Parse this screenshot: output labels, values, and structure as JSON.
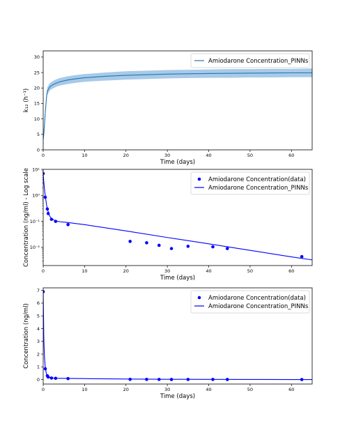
{
  "chart_data": [
    {
      "type": "area",
      "xlabel": "Time (days)",
      "ylabel": "k₁₂ (h⁻¹)",
      "xlim": [
        0,
        65
      ],
      "ylim": [
        0,
        32
      ],
      "xticks": [
        0,
        10,
        20,
        30,
        40,
        50,
        60
      ],
      "yticks": [
        0,
        5,
        10,
        15,
        20,
        25,
        30
      ],
      "legend_position": "upper-right",
      "series": [
        {
          "name": "Amiodarone Concentration_PINNs",
          "color": "#1f77b4",
          "band_color": "#9ec4e6",
          "x": [
            0,
            0.2,
            0.5,
            0.8,
            1,
            1.5,
            2,
            3,
            4,
            6,
            8,
            10,
            15,
            20,
            25,
            30,
            35,
            40,
            45,
            50,
            55,
            60,
            65
          ],
          "y": [
            3.5,
            6,
            12,
            17,
            19,
            20.2,
            20.8,
            21.5,
            22,
            22.6,
            23,
            23.3,
            23.8,
            24.1,
            24.3,
            24.5,
            24.6,
            24.7,
            24.75,
            24.8,
            24.85,
            24.9,
            24.9
          ],
          "lower": [
            2,
            4.5,
            10.5,
            15.8,
            17.8,
            19,
            19.6,
            20.3,
            20.8,
            21.3,
            21.7,
            22,
            22.4,
            22.7,
            22.9,
            23.1,
            23.2,
            23.3,
            23.3,
            23.4,
            23.4,
            23.5,
            23.5
          ],
          "upper": [
            5,
            7.5,
            13.5,
            18.2,
            20.2,
            21.4,
            22,
            22.7,
            23.2,
            23.8,
            24.2,
            24.5,
            25,
            25.4,
            25.6,
            25.8,
            25.9,
            26,
            26.1,
            26.1,
            26.2,
            26.2,
            26.3
          ]
        }
      ]
    },
    {
      "type": "scatter",
      "xlabel": "Time (days)",
      "ylabel": "Concentration (ng/ml) - Log scale",
      "yscale": "log",
      "xlim": [
        0,
        65
      ],
      "ylim": [
        0.002,
        10
      ],
      "xticks": [
        0,
        10,
        20,
        30,
        40,
        50,
        60
      ],
      "yticks": [
        10,
        1,
        0.1,
        0.01
      ],
      "ytick_labels": [
        "10¹",
        "10⁰",
        "10⁻¹",
        "10⁻²"
      ],
      "legend_position": "upper-right",
      "series": [
        {
          "name": "Amiodarone Concentration(data)",
          "kind": "scatter",
          "color": "#0000ff",
          "x": [
            0,
            0.5,
            1,
            1.2,
            2,
            3,
            6,
            21,
            25,
            28,
            31,
            35,
            41,
            44.5,
            62.5
          ],
          "y": [
            6.9,
            0.85,
            0.3,
            0.2,
            0.12,
            0.1,
            0.075,
            0.017,
            0.015,
            0.012,
            0.009,
            0.011,
            0.0105,
            0.009,
            0.0044
          ]
        },
        {
          "name": "Amiodarone Concentration_PINNs",
          "kind": "line",
          "color": "#0000ff",
          "x": [
            0,
            0.15,
            0.3,
            0.5,
            0.75,
            1,
            1.5,
            2,
            3,
            4,
            6,
            10,
            20,
            30,
            40,
            50,
            60,
            65
          ],
          "y": [
            6.9,
            3.2,
            1.8,
            0.95,
            0.5,
            0.3,
            0.17,
            0.125,
            0.105,
            0.097,
            0.09,
            0.075,
            0.043,
            0.024,
            0.0137,
            0.0077,
            0.0043,
            0.0033
          ]
        }
      ]
    },
    {
      "type": "scatter",
      "xlabel": "Time (days)",
      "ylabel": "Concentration (ng/ml)",
      "xlim": [
        0,
        65
      ],
      "ylim": [
        -0.35,
        7.2
      ],
      "xticks": [
        0,
        10,
        20,
        30,
        40,
        50,
        60
      ],
      "yticks": [
        0,
        1,
        2,
        3,
        4,
        5,
        6,
        7
      ],
      "legend_position": "upper-right",
      "series": [
        {
          "name": "Amiodarone Concentration(data)",
          "kind": "scatter",
          "color": "#0000ff",
          "x": [
            0,
            0.5,
            1,
            1.2,
            2,
            3,
            6,
            21,
            25,
            28,
            31,
            35,
            41,
            44.5,
            62.5
          ],
          "y": [
            6.9,
            0.85,
            0.3,
            0.2,
            0.12,
            0.1,
            0.075,
            0.017,
            0.015,
            0.012,
            0.009,
            0.011,
            0.0105,
            0.009,
            0.0044
          ]
        },
        {
          "name": "Amiodarone Concentration_PINNs",
          "kind": "line",
          "color": "#0000ff",
          "x": [
            0,
            0.15,
            0.3,
            0.5,
            0.75,
            1,
            1.5,
            2,
            3,
            4,
            6,
            10,
            20,
            30,
            40,
            50,
            60,
            65
          ],
          "y": [
            6.9,
            3.2,
            1.8,
            0.95,
            0.5,
            0.3,
            0.17,
            0.125,
            0.105,
            0.097,
            0.09,
            0.075,
            0.043,
            0.024,
            0.0137,
            0.0077,
            0.0043,
            0.0033
          ]
        }
      ]
    }
  ]
}
